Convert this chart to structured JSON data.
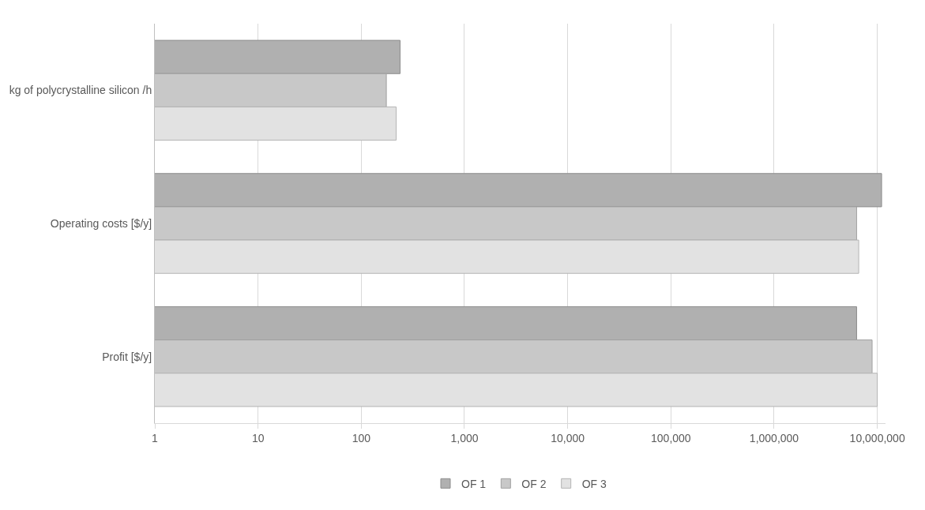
{
  "chart_data": {
    "type": "bar",
    "orientation": "horizontal",
    "categories": [
      "kg of polycrystalline silicon /h",
      "Operating costs [$/y]",
      "Profit [$/y]"
    ],
    "series": [
      {
        "name": "OF 1",
        "color": "#b0b0b0",
        "values": [
          238,
          11000000,
          6300000
        ]
      },
      {
        "name": "OF 2",
        "color": "#c8c8c8",
        "values": [
          175,
          6300000,
          8900000
        ]
      },
      {
        "name": "OF 3",
        "color": "#e2e2e2",
        "values": [
          218,
          6600000,
          10000000
        ]
      }
    ],
    "log": "x",
    "xlim": [
      1,
      12000000
    ],
    "xticks": [
      1,
      10,
      100,
      {
        "value": 1000,
        "label": "1,000"
      },
      {
        "value": 10000,
        "label": "10,000"
      },
      {
        "value": 100000,
        "label": "100,000"
      },
      {
        "value": 1000000,
        "label": "1,000,000"
      },
      {
        "value": 10000000,
        "label": "10,000,000"
      }
    ],
    "grid": "x",
    "legend": "bottom"
  }
}
